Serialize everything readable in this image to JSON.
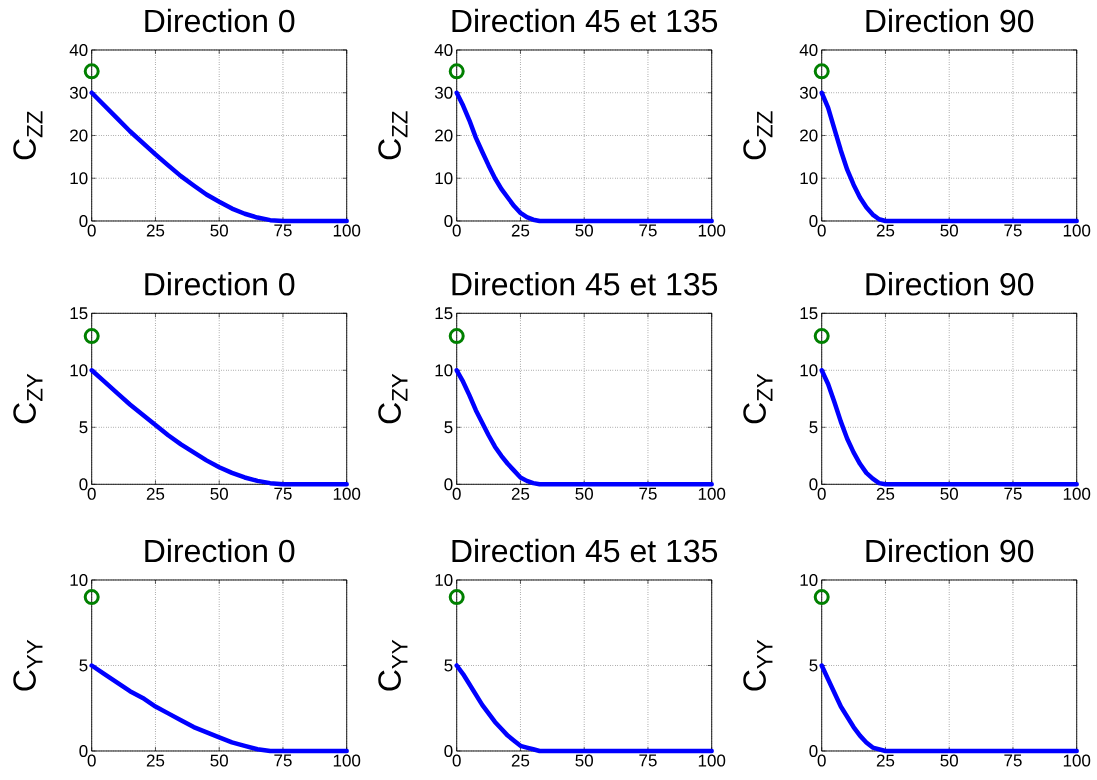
{
  "chart_data": [
    {
      "type": "line",
      "title": "Direction 0",
      "ylabel": "C$_{ZZ}$",
      "xlim": [
        0,
        100
      ],
      "xticks": [
        0,
        25,
        50,
        75,
        100
      ],
      "ylim": [
        0,
        40
      ],
      "yticks": [
        0,
        10,
        20,
        30,
        40
      ],
      "grid": true,
      "series": [
        {
          "color": "#0000ff",
          "x": [
            0,
            5,
            10,
            15,
            20,
            25,
            30,
            35,
            40,
            45,
            50,
            55,
            60,
            65,
            70,
            75,
            100
          ],
          "values": [
            30,
            27,
            24,
            21,
            18.3,
            15.6,
            13,
            10.5,
            8.3,
            6.2,
            4.5,
            2.9,
            1.7,
            0.8,
            0.2,
            0,
            0
          ]
        },
        {
          "type": "scatter",
          "marker": "circle",
          "color": "#008000",
          "x": [
            0
          ],
          "values": [
            35
          ]
        }
      ]
    },
    {
      "type": "line",
      "title": "Direction 45 et 135",
      "ylabel": "C$_{ZZ}$",
      "xlim": [
        0,
        100
      ],
      "xticks": [
        0,
        25,
        50,
        75,
        100
      ],
      "ylim": [
        0,
        40
      ],
      "yticks": [
        0,
        10,
        20,
        30,
        40
      ],
      "grid": true,
      "series": [
        {
          "color": "#0000ff",
          "x": [
            0,
            2.5,
            5,
            7.5,
            10,
            12.5,
            15,
            17.5,
            20,
            22.5,
            25,
            27.5,
            30,
            32.5,
            35,
            100
          ],
          "values": [
            30,
            27,
            23.5,
            19.5,
            16.2,
            13,
            10,
            7.5,
            5.5,
            3.5,
            1.9,
            0.9,
            0.3,
            0,
            0,
            0
          ]
        },
        {
          "type": "scatter",
          "marker": "circle",
          "color": "#008000",
          "x": [
            0
          ],
          "values": [
            35
          ]
        }
      ]
    },
    {
      "type": "line",
      "title": "Direction 90",
      "ylabel": "C$_{ZZ}$",
      "xlim": [
        0,
        100
      ],
      "xticks": [
        0,
        25,
        50,
        75,
        100
      ],
      "ylim": [
        0,
        40
      ],
      "yticks": [
        0,
        10,
        20,
        30,
        40
      ],
      "grid": true,
      "series": [
        {
          "color": "#0000ff",
          "x": [
            0,
            2.5,
            5,
            7.5,
            10,
            12.5,
            15,
            17.5,
            20,
            22.5,
            25,
            100
          ],
          "values": [
            30,
            26.5,
            21.5,
            16.5,
            12,
            8.5,
            5.5,
            3.2,
            1.5,
            0.4,
            0,
            0
          ]
        },
        {
          "type": "scatter",
          "marker": "circle",
          "color": "#008000",
          "x": [
            0
          ],
          "values": [
            35
          ]
        }
      ]
    },
    {
      "type": "line",
      "title": "Direction 0",
      "ylabel": "C$_{ZY}$",
      "xlim": [
        0,
        100
      ],
      "xticks": [
        0,
        25,
        50,
        75,
        100
      ],
      "ylim": [
        0,
        15
      ],
      "yticks": [
        0,
        5,
        10,
        15
      ],
      "grid": true,
      "series": [
        {
          "color": "#0000ff",
          "x": [
            0,
            5,
            10,
            15,
            20,
            25,
            30,
            35,
            40,
            45,
            50,
            55,
            60,
            65,
            70,
            75,
            100
          ],
          "values": [
            10,
            9,
            8,
            7,
            6.1,
            5.2,
            4.3,
            3.5,
            2.8,
            2.1,
            1.5,
            1,
            0.6,
            0.3,
            0.1,
            0,
            0
          ]
        },
        {
          "type": "scatter",
          "marker": "circle",
          "color": "#008000",
          "x": [
            0
          ],
          "values": [
            13
          ]
        }
      ]
    },
    {
      "type": "line",
      "title": "Direction 45 et 135",
      "ylabel": "C$_{ZY}$",
      "xlim": [
        0,
        100
      ],
      "xticks": [
        0,
        25,
        50,
        75,
        100
      ],
      "ylim": [
        0,
        15
      ],
      "yticks": [
        0,
        5,
        10,
        15
      ],
      "grid": true,
      "series": [
        {
          "color": "#0000ff",
          "x": [
            0,
            2.5,
            5,
            7.5,
            10,
            12.5,
            15,
            17.5,
            20,
            22.5,
            25,
            27.5,
            30,
            32.5,
            35,
            100
          ],
          "values": [
            10,
            9,
            7.8,
            6.5,
            5.4,
            4.3,
            3.3,
            2.5,
            1.8,
            1.2,
            0.6,
            0.3,
            0.1,
            0,
            0,
            0
          ]
        },
        {
          "type": "scatter",
          "marker": "circle",
          "color": "#008000",
          "x": [
            0
          ],
          "values": [
            13
          ]
        }
      ]
    },
    {
      "type": "line",
      "title": "Direction 90",
      "ylabel": "C$_{ZY}$",
      "xlim": [
        0,
        100
      ],
      "xticks": [
        0,
        25,
        50,
        75,
        100
      ],
      "ylim": [
        0,
        15
      ],
      "yticks": [
        0,
        5,
        10,
        15
      ],
      "grid": true,
      "series": [
        {
          "color": "#0000ff",
          "x": [
            0,
            2.5,
            5,
            7.5,
            10,
            12.5,
            15,
            17.5,
            20,
            22.5,
            25,
            100
          ],
          "values": [
            10,
            8.8,
            7.2,
            5.5,
            4,
            2.8,
            1.8,
            1,
            0.5,
            0.1,
            0,
            0
          ]
        },
        {
          "type": "scatter",
          "marker": "circle",
          "color": "#008000",
          "x": [
            0
          ],
          "values": [
            13
          ]
        }
      ]
    },
    {
      "type": "line",
      "title": "Direction 0",
      "ylabel": "C$_{YY}$",
      "xlim": [
        0,
        100
      ],
      "xticks": [
        0,
        25,
        50,
        75,
        100
      ],
      "ylim": [
        0,
        10
      ],
      "yticks": [
        0,
        5,
        10
      ],
      "grid": true,
      "series": [
        {
          "color": "#0000ff",
          "x": [
            0,
            5,
            10,
            15,
            20,
            25,
            30,
            35,
            40,
            45,
            50,
            55,
            60,
            65,
            70,
            75,
            100
          ],
          "values": [
            5,
            4.5,
            4,
            3.5,
            3.1,
            2.6,
            2.2,
            1.8,
            1.4,
            1.1,
            0.8,
            0.5,
            0.3,
            0.1,
            0,
            0,
            0
          ]
        },
        {
          "type": "scatter",
          "marker": "circle",
          "color": "#008000",
          "x": [
            0
          ],
          "values": [
            9
          ]
        }
      ]
    },
    {
      "type": "line",
      "title": "Direction 45 et 135",
      "ylabel": "C$_{YY}$",
      "xlim": [
        0,
        100
      ],
      "xticks": [
        0,
        25,
        50,
        75,
        100
      ],
      "ylim": [
        0,
        10
      ],
      "yticks": [
        0,
        5,
        10
      ],
      "grid": true,
      "series": [
        {
          "color": "#0000ff",
          "x": [
            0,
            2.5,
            5,
            7.5,
            10,
            12.5,
            15,
            17.5,
            20,
            22.5,
            25,
            27.5,
            30,
            32.5,
            35,
            100
          ],
          "values": [
            5,
            4.5,
            3.9,
            3.3,
            2.7,
            2.2,
            1.7,
            1.3,
            0.9,
            0.6,
            0.3,
            0.2,
            0.1,
            0,
            0,
            0
          ]
        },
        {
          "type": "scatter",
          "marker": "circle",
          "color": "#008000",
          "x": [
            0
          ],
          "values": [
            9
          ]
        }
      ]
    },
    {
      "type": "line",
      "title": "Direction 90",
      "ylabel": "C$_{YY}$",
      "xlim": [
        0,
        100
      ],
      "xticks": [
        0,
        25,
        50,
        75,
        100
      ],
      "ylim": [
        0,
        10
      ],
      "yticks": [
        0,
        5,
        10
      ],
      "grid": true,
      "series": [
        {
          "color": "#0000ff",
          "x": [
            0,
            2.5,
            5,
            7.5,
            10,
            12.5,
            15,
            17.5,
            20,
            22.5,
            25,
            100
          ],
          "values": [
            5,
            4.2,
            3.4,
            2.6,
            2,
            1.4,
            0.9,
            0.5,
            0.2,
            0.1,
            0,
            0
          ]
        },
        {
          "type": "scatter",
          "marker": "circle",
          "color": "#008000",
          "x": [
            0
          ],
          "values": [
            9
          ]
        }
      ]
    }
  ]
}
